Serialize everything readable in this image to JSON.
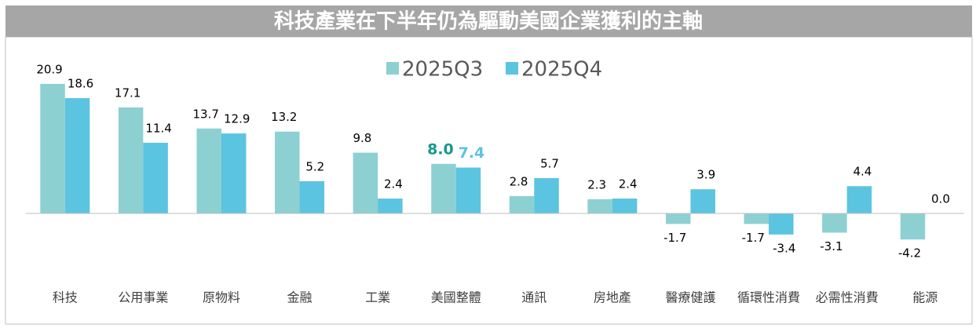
{
  "chart_data": {
    "type": "bar",
    "title": "科技產業在下半年仍為驅動美國企業獲利的主軸",
    "categories": [
      "科技",
      "公用事業",
      "原物料",
      "金融",
      "工業",
      "美國整體",
      "通訊",
      "房地產",
      "醫療健護",
      "循環性消費",
      "必需性消費",
      "能源"
    ],
    "series": [
      {
        "name": "2025Q3",
        "color": "#8dd0d2",
        "highlight_color": "#17988c",
        "values": [
          20.9,
          17.1,
          13.7,
          13.2,
          9.8,
          8.0,
          2.8,
          2.3,
          -1.7,
          -1.7,
          -3.1,
          -4.2
        ],
        "value_labels": [
          "20.9",
          "17.1",
          "13.7",
          "13.2",
          "9.8",
          "8.0",
          "2.8",
          "2.3",
          "-1.7",
          "-1.7",
          "-3.1",
          "-4.2"
        ]
      },
      {
        "name": "2025Q4",
        "color": "#5bc4e0",
        "highlight_color": "#5bc4e0",
        "values": [
          18.6,
          11.4,
          12.9,
          5.2,
          2.4,
          7.4,
          5.7,
          2.4,
          3.9,
          -3.4,
          4.4,
          0.0
        ],
        "value_labels": [
          "18.6",
          "11.4",
          "12.9",
          "5.2",
          "2.4",
          "7.4",
          "5.7",
          "2.4",
          "3.9",
          "-3.4",
          "4.4",
          "0.0"
        ]
      }
    ],
    "highlight": "美國整體",
    "legend": "top"
  }
}
